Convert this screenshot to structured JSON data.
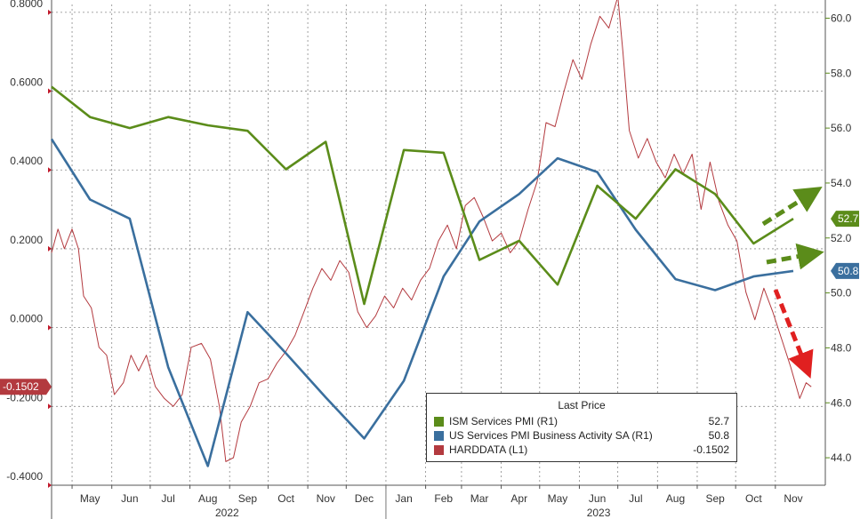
{
  "chart_data": {
    "type": "line",
    "x_months": [
      "May",
      "Jun",
      "Jul",
      "Aug",
      "Sep",
      "Oct",
      "Nov",
      "Dec",
      "Jan",
      "Feb",
      "Mar",
      "Apr",
      "May",
      "Jun",
      "Jul",
      "Aug",
      "Sep",
      "Oct",
      "Nov"
    ],
    "years": [
      {
        "label": "2022",
        "from": "May",
        "to": "Dec"
      },
      {
        "label": "2023",
        "from": "Jan",
        "to": "Nov"
      }
    ],
    "x_range": [
      "2022-04-15",
      "2023-12-10"
    ],
    "left_axis": {
      "ticks": [
        "0.8000",
        "0.6000",
        "0.4000",
        "0.2000",
        "0.0000",
        "-0.2000",
        "-0.4000"
      ],
      "ylim": [
        -0.4,
        0.82
      ]
    },
    "right_axis": {
      "ticks": [
        "60.0",
        "58.0",
        "56.0",
        "54.0",
        "52.0",
        "50.0",
        "48.0",
        "46.0",
        "44.0"
      ],
      "ylim": [
        43,
        60.5
      ]
    },
    "grid": true,
    "legend": {
      "title": "Last Price",
      "placement": "bottom-right",
      "entries": [
        {
          "name": "ISM Services PMI  (R1)",
          "value": "52.7",
          "color": "#5b8c1a"
        },
        {
          "name": "US Services PMI Business Activity SA  (R1)",
          "value": "50.8",
          "color": "#3a6f9e"
        },
        {
          "name": "HARDDATA  (L1)",
          "value": "-0.1502",
          "color": "#b33a3f"
        }
      ]
    },
    "series": [
      {
        "name": "ISM Services PMI  (R1)",
        "axis": "right",
        "color": "#5b8c1a",
        "last_label": "52.7",
        "points": [
          [
            "2022-04-15",
            57.5
          ],
          [
            "2022-05-15",
            56.4
          ],
          [
            "2022-06-15",
            56.0
          ],
          [
            "2022-07-15",
            56.4
          ],
          [
            "2022-08-15",
            56.1
          ],
          [
            "2022-09-15",
            55.9
          ],
          [
            "2022-10-15",
            54.5
          ],
          [
            "2022-11-15",
            55.5
          ],
          [
            "2022-12-15",
            49.6
          ],
          [
            "2023-01-15",
            55.2
          ],
          [
            "2023-02-15",
            55.1
          ],
          [
            "2023-03-15",
            51.2
          ],
          [
            "2023-04-15",
            51.9
          ],
          [
            "2023-05-15",
            50.3
          ],
          [
            "2023-06-15",
            53.9
          ],
          [
            "2023-07-15",
            52.7
          ],
          [
            "2023-08-15",
            54.5
          ],
          [
            "2023-09-15",
            53.6
          ],
          [
            "2023-10-15",
            51.8
          ],
          [
            "2023-11-15",
            52.7
          ]
        ]
      },
      {
        "name": "US Services PMI Business Activity SA  (R1)",
        "axis": "right",
        "color": "#3a6f9e",
        "last_label": "50.8",
        "points": [
          [
            "2022-04-15",
            55.6
          ],
          [
            "2022-05-15",
            53.4
          ],
          [
            "2022-06-15",
            52.7
          ],
          [
            "2022-07-15",
            47.3
          ],
          [
            "2022-08-15",
            43.7
          ],
          [
            "2022-09-15",
            49.3
          ],
          [
            "2022-10-15",
            47.8
          ],
          [
            "2022-11-15",
            46.2
          ],
          [
            "2022-12-15",
            44.7
          ],
          [
            "2023-01-15",
            46.8
          ],
          [
            "2023-02-15",
            50.6
          ],
          [
            "2023-03-15",
            52.6
          ],
          [
            "2023-04-15",
            53.6
          ],
          [
            "2023-05-15",
            54.9
          ],
          [
            "2023-06-15",
            54.4
          ],
          [
            "2023-07-15",
            52.3
          ],
          [
            "2023-08-15",
            50.5
          ],
          [
            "2023-09-15",
            50.1
          ],
          [
            "2023-10-15",
            50.6
          ],
          [
            "2023-11-15",
            50.8
          ]
        ]
      },
      {
        "name": "HARDDATA  (L1)",
        "axis": "left",
        "color": "#b33a3f",
        "last_label": "-0.1502",
        "points": [
          [
            "2022-04-15",
            0.19
          ],
          [
            "2022-04-20",
            0.25
          ],
          [
            "2022-04-25",
            0.2
          ],
          [
            "2022-05-01",
            0.25
          ],
          [
            "2022-05-06",
            0.2
          ],
          [
            "2022-05-10",
            0.08
          ],
          [
            "2022-05-16",
            0.05
          ],
          [
            "2022-05-22",
            -0.05
          ],
          [
            "2022-05-28",
            -0.07
          ],
          [
            "2022-06-03",
            -0.17
          ],
          [
            "2022-06-10",
            -0.14
          ],
          [
            "2022-06-16",
            -0.07
          ],
          [
            "2022-06-22",
            -0.11
          ],
          [
            "2022-06-28",
            -0.07
          ],
          [
            "2022-07-05",
            -0.15
          ],
          [
            "2022-07-12",
            -0.18
          ],
          [
            "2022-07-19",
            -0.2
          ],
          [
            "2022-07-26",
            -0.17
          ],
          [
            "2022-08-02",
            -0.05
          ],
          [
            "2022-08-10",
            -0.04
          ],
          [
            "2022-08-17",
            -0.08
          ],
          [
            "2022-08-24",
            -0.2
          ],
          [
            "2022-08-29",
            -0.34
          ],
          [
            "2022-09-04",
            -0.33
          ],
          [
            "2022-09-10",
            -0.24
          ],
          [
            "2022-09-17",
            -0.2
          ],
          [
            "2022-09-24",
            -0.14
          ],
          [
            "2022-10-01",
            -0.13
          ],
          [
            "2022-10-08",
            -0.09
          ],
          [
            "2022-10-15",
            -0.06
          ],
          [
            "2022-10-22",
            -0.02
          ],
          [
            "2022-10-29",
            0.04
          ],
          [
            "2022-11-05",
            0.1
          ],
          [
            "2022-11-12",
            0.15
          ],
          [
            "2022-11-19",
            0.12
          ],
          [
            "2022-11-26",
            0.17
          ],
          [
            "2022-12-03",
            0.14
          ],
          [
            "2022-12-10",
            0.04
          ],
          [
            "2022-12-17",
            0.0
          ],
          [
            "2022-12-24",
            0.03
          ],
          [
            "2022-12-31",
            0.08
          ],
          [
            "2023-01-07",
            0.05
          ],
          [
            "2023-01-14",
            0.1
          ],
          [
            "2023-01-21",
            0.07
          ],
          [
            "2023-01-28",
            0.12
          ],
          [
            "2023-02-04",
            0.15
          ],
          [
            "2023-02-11",
            0.22
          ],
          [
            "2023-02-18",
            0.26
          ],
          [
            "2023-02-25",
            0.2
          ],
          [
            "2023-03-04",
            0.31
          ],
          [
            "2023-03-11",
            0.33
          ],
          [
            "2023-03-18",
            0.28
          ],
          [
            "2023-03-25",
            0.22
          ],
          [
            "2023-04-01",
            0.24
          ],
          [
            "2023-04-08",
            0.19
          ],
          [
            "2023-04-15",
            0.22
          ],
          [
            "2023-04-22",
            0.3
          ],
          [
            "2023-04-29",
            0.37
          ],
          [
            "2023-05-06",
            0.52
          ],
          [
            "2023-05-13",
            0.51
          ],
          [
            "2023-05-20",
            0.6
          ],
          [
            "2023-05-27",
            0.68
          ],
          [
            "2023-06-03",
            0.63
          ],
          [
            "2023-06-10",
            0.72
          ],
          [
            "2023-06-17",
            0.79
          ],
          [
            "2023-06-24",
            0.76
          ],
          [
            "2023-07-01",
            0.84
          ],
          [
            "2023-07-05",
            0.7
          ],
          [
            "2023-07-10",
            0.5
          ],
          [
            "2023-07-17",
            0.43
          ],
          [
            "2023-07-24",
            0.48
          ],
          [
            "2023-07-31",
            0.42
          ],
          [
            "2023-08-07",
            0.38
          ],
          [
            "2023-08-14",
            0.44
          ],
          [
            "2023-08-21",
            0.39
          ],
          [
            "2023-08-28",
            0.44
          ],
          [
            "2023-09-04",
            0.3
          ],
          [
            "2023-09-11",
            0.42
          ],
          [
            "2023-09-18",
            0.32
          ],
          [
            "2023-09-25",
            0.26
          ],
          [
            "2023-10-02",
            0.22
          ],
          [
            "2023-10-09",
            0.09
          ],
          [
            "2023-10-16",
            0.02
          ],
          [
            "2023-10-23",
            0.1
          ],
          [
            "2023-10-30",
            0.04
          ],
          [
            "2023-11-06",
            -0.03
          ],
          [
            "2023-11-13",
            -0.1
          ],
          [
            "2023-11-20",
            -0.18
          ],
          [
            "2023-11-25",
            -0.14
          ],
          [
            "2023-11-29",
            -0.1502
          ]
        ]
      }
    ]
  }
}
